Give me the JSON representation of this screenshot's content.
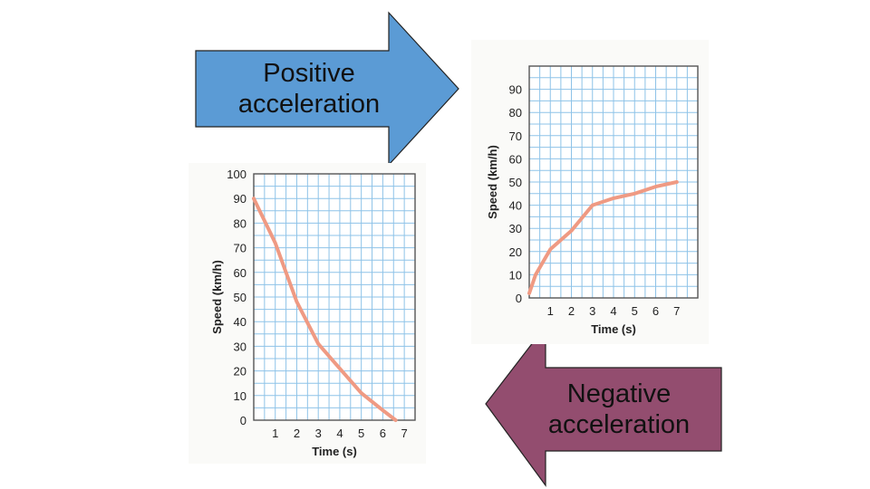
{
  "labels": {
    "positive": "Positive acceleration",
    "negative": "Negative acceleration"
  },
  "colors": {
    "positive_arrow": "#5b9bd5",
    "negative_arrow": "#934d6f",
    "grid": "#8ec3e8",
    "frame": "#555555",
    "curve": "#ef9a83"
  },
  "chart_data": [
    {
      "type": "line",
      "xlabel": "Time (s)",
      "ylabel": "Speed (km/h)",
      "xlim": [
        0,
        7.5
      ],
      "ylim": [
        0,
        100
      ],
      "x_ticks": [
        1,
        2,
        3,
        4,
        5,
        6,
        7
      ],
      "y_ticks": [
        0,
        10,
        20,
        30,
        40,
        50,
        60,
        70,
        80,
        90,
        100
      ],
      "grid": true,
      "series": [
        {
          "x": [
            0,
            1,
            2,
            3,
            4,
            5,
            6,
            6.6
          ],
          "y": [
            90,
            72,
            48,
            31,
            21,
            11,
            4,
            0
          ]
        }
      ]
    },
    {
      "type": "line",
      "xlabel": "Time (s)",
      "ylabel": "Speed (km/h)",
      "xlim": [
        0,
        8
      ],
      "ylim": [
        0,
        100
      ],
      "x_ticks": [
        1,
        2,
        3,
        4,
        5,
        6,
        7
      ],
      "y_ticks": [
        0,
        10,
        20,
        30,
        40,
        50,
        60,
        70,
        80,
        90
      ],
      "grid": true,
      "series": [
        {
          "x": [
            0,
            0.3,
            1,
            2,
            3,
            4,
            5,
            6,
            7
          ],
          "y": [
            2,
            10,
            21,
            29,
            40,
            43,
            45,
            48,
            50
          ]
        }
      ]
    }
  ]
}
